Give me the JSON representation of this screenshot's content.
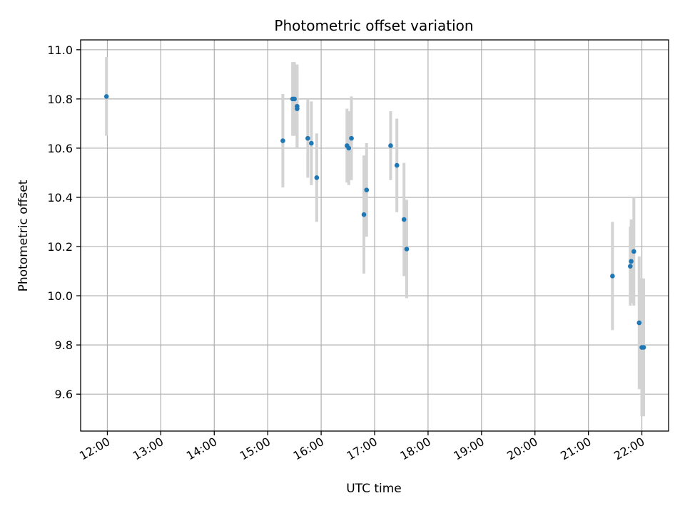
{
  "chart_data": {
    "type": "scatter",
    "title": "Photometric offset variation",
    "xlabel": "UTC time",
    "ylabel": "Photometric offset",
    "xlim": [
      "11:30",
      "22:30"
    ],
    "ylim": [
      9.45,
      11.04
    ],
    "xticks": [
      "12:00",
      "13:00",
      "14:00",
      "15:00",
      "16:00",
      "17:00",
      "18:00",
      "19:00",
      "20:00",
      "21:00",
      "22:00"
    ],
    "yticks": [
      9.6,
      9.8,
      10.0,
      10.2,
      10.4,
      10.6,
      10.8,
      11.0
    ],
    "ytick_labels": [
      "9.6",
      "9.8",
      "10.0",
      "10.2",
      "10.4",
      "10.6",
      "10.8",
      "11.0"
    ],
    "grid": true,
    "points": [
      {
        "x": "11:59",
        "y": 10.81,
        "err": 0.16
      },
      {
        "x": "15:17",
        "y": 10.63,
        "err": 0.19
      },
      {
        "x": "15:28",
        "y": 10.8,
        "err": 0.15
      },
      {
        "x": "15:30",
        "y": 10.8,
        "err": 0.15
      },
      {
        "x": "15:33",
        "y": 10.77,
        "err": 0.17
      },
      {
        "x": "15:33",
        "y": 10.76,
        "err": 0.16
      },
      {
        "x": "15:45",
        "y": 10.64,
        "err": 0.16
      },
      {
        "x": "15:49",
        "y": 10.62,
        "err": 0.17
      },
      {
        "x": "15:55",
        "y": 10.48,
        "err": 0.18
      },
      {
        "x": "16:29",
        "y": 10.61,
        "err": 0.15
      },
      {
        "x": "16:31",
        "y": 10.6,
        "err": 0.15
      },
      {
        "x": "16:34",
        "y": 10.64,
        "err": 0.17
      },
      {
        "x": "16:48",
        "y": 10.33,
        "err": 0.24
      },
      {
        "x": "16:51",
        "y": 10.43,
        "err": 0.19
      },
      {
        "x": "17:18",
        "y": 10.61,
        "err": 0.14
      },
      {
        "x": "17:25",
        "y": 10.53,
        "err": 0.19
      },
      {
        "x": "17:33",
        "y": 10.31,
        "err": 0.23
      },
      {
        "x": "17:36",
        "y": 10.19,
        "err": 0.2
      },
      {
        "x": "21:27",
        "y": 10.08,
        "err": 0.22
      },
      {
        "x": "21:47",
        "y": 10.12,
        "err": 0.16
      },
      {
        "x": "21:48",
        "y": 10.14,
        "err": 0.17
      },
      {
        "x": "21:51",
        "y": 10.18,
        "err": 0.22
      },
      {
        "x": "21:57",
        "y": 9.89,
        "err": 0.27
      },
      {
        "x": "22:00",
        "y": 9.79,
        "err": 0.28
      },
      {
        "x": "22:02",
        "y": 9.79,
        "err": 0.28
      }
    ],
    "colors": {
      "points": "#1f77b4",
      "errorbars": "#d3d3d3",
      "grid": "#b0b0b0"
    }
  }
}
